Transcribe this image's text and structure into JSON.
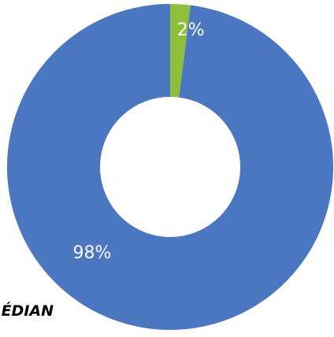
{
  "chart_data": {
    "type": "pie",
    "donut": true,
    "slices": [
      {
        "value": 2,
        "label": "2%",
        "color": "#8DBE3C"
      },
      {
        "value": 98,
        "label": "98%",
        "color": "#4B76C0"
      }
    ],
    "title": "",
    "legend": "none"
  },
  "page": {
    "corner_text": "ÉDIAN"
  }
}
